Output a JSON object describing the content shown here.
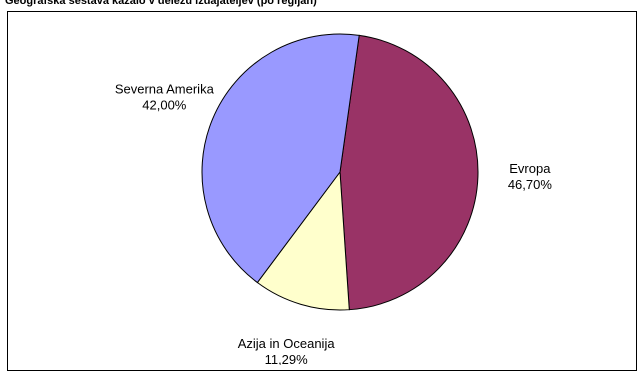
{
  "chart_data": {
    "type": "pie",
    "title": "Geografska sestava kazalo v deležu izdajateljev (po regijah)",
    "slices": [
      {
        "label": "Evropa",
        "value": 46.7,
        "display": "46,70%",
        "color": "#993366"
      },
      {
        "label": "Azija in Oceanija",
        "value": 11.29,
        "display": "11,29%",
        "color": "#ffffcc"
      },
      {
        "label": "Severna Amerika",
        "value": 42.0,
        "display": "42,00%",
        "color": "#9999ff"
      }
    ],
    "legend": "none",
    "label_position": "outside"
  }
}
